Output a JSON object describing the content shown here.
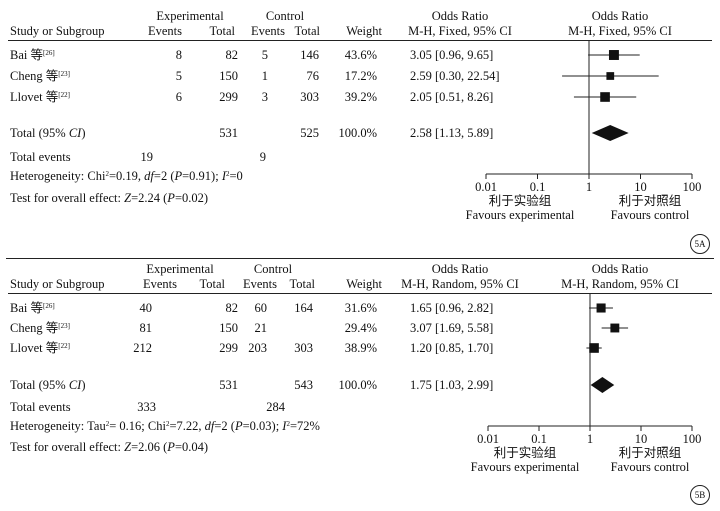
{
  "chart_data": [
    {
      "type": "forest",
      "header": {
        "study": "Study or Subgroup",
        "exp_group": "Experimental",
        "ctl_group": "Control",
        "events": "Events",
        "total": "Total",
        "weight": "Weight",
        "or_title": "Odds Ratio",
        "or_method": "M-H, Fixed, 95% CI",
        "plot_title": "Odds Ratio",
        "plot_method": "M-H, Fixed, 95% CI"
      },
      "studies": [
        {
          "name": "Bai 等",
          "ref": "[26]",
          "exp_events": "8",
          "exp_total": "82",
          "ctl_events": "5",
          "ctl_total": "146",
          "weight": "43.6%",
          "ci_text": "3.05 [0.96, 9.65]",
          "or": 3.05,
          "lo": 0.96,
          "hi": 9.65,
          "w": 43.6
        },
        {
          "name": "Cheng 等",
          "ref": "[23]",
          "exp_events": "5",
          "exp_total": "150",
          "ctl_events": "1",
          "ctl_total": "76",
          "weight": "17.2%",
          "ci_text": "2.59 [0.30, 22.54]",
          "or": 2.59,
          "lo": 0.3,
          "hi": 22.54,
          "w": 17.2
        },
        {
          "name": "Llovet 等",
          "ref": "[22]",
          "exp_events": "6",
          "exp_total": "299",
          "ctl_events": "3",
          "ctl_total": "303",
          "weight": "39.2%",
          "ci_text": "2.05 [0.51, 8.26]",
          "or": 2.05,
          "lo": 0.51,
          "hi": 8.26,
          "w": 39.2
        }
      ],
      "total": {
        "label": "Total (95% CI)",
        "exp_total": "531",
        "ctl_total": "525",
        "weight": "100.0%",
        "ci_text": "2.58 [1.13, 5.89]",
        "or": 2.58,
        "lo": 1.13,
        "hi": 5.89
      },
      "total_events": {
        "label": "Total events",
        "exp": "19",
        "ctl": "9"
      },
      "heterogeneity": "Heterogeneity: Chi²=0.19, df=2 (P=0.91); I²=0",
      "overall": "Test for overall effect: Z=2.24 (P=0.02)",
      "xticks": [
        "0.01",
        "0.1",
        "1",
        "10",
        "100"
      ],
      "xscale": "log",
      "xlim": [
        0.01,
        100
      ],
      "favours_left_cn": "利于实验组",
      "favours_right_cn": "利于对照组",
      "favours_left": "Favours experimental",
      "favours_right": "Favours control",
      "badge": "5A"
    },
    {
      "type": "forest",
      "header": {
        "study": "Study or Subgroup",
        "exp_group": "Experimental",
        "ctl_group": "Control",
        "events": "Events",
        "total": "Total",
        "weight": "Weight",
        "or_title": "Odds Ratio",
        "or_method": "M-H, Random, 95% CI",
        "plot_title": "Odds Ratio",
        "plot_method": "M-H, Random, 95% CI"
      },
      "studies": [
        {
          "name": "Bai 等",
          "ref": "[26]",
          "exp_events": "40",
          "exp_total": "82",
          "ctl_events": "60",
          "ctl_total": "164",
          "weight": "31.6%",
          "ci_text": "1.65 [0.96, 2.82]",
          "or": 1.65,
          "lo": 0.96,
          "hi": 2.82,
          "w": 31.6
        },
        {
          "name": "Cheng 等",
          "ref": "[23]",
          "exp_events": "81",
          "exp_total": "150",
          "ctl_events": "21",
          "ctl_total": "",
          "weight": "29.4%",
          "ci_text": "3.07 [1.69, 5.58]",
          "or": 3.07,
          "lo": 1.69,
          "hi": 5.58,
          "w": 29.4
        },
        {
          "name": "Llovet 等",
          "ref": "[22]",
          "exp_events": "212",
          "exp_total": "299",
          "ctl_events": "203",
          "ctl_total": "303",
          "weight": "38.9%",
          "ci_text": "1.20 [0.85, 1.70]",
          "or": 1.2,
          "lo": 0.85,
          "hi": 1.7,
          "w": 38.9
        }
      ],
      "total": {
        "label": "Total (95% CI)",
        "exp_total": "531",
        "ctl_total": "543",
        "weight": "100.0%",
        "ci_text": "1.75 [1.03, 2.99]",
        "or": 1.75,
        "lo": 1.03,
        "hi": 2.99
      },
      "total_events": {
        "label": "Total events",
        "exp": "333",
        "ctl": "284"
      },
      "heterogeneity": "Heterogeneity: Tau²= 0.16; Chi²=7.22, df=2 (P=0.03); I²=72%",
      "overall": "Test for overall effect: Z=2.06 (P=0.04)",
      "xticks": [
        "0.01",
        "0.1",
        "1",
        "10",
        "100"
      ],
      "xscale": "log",
      "xlim": [
        0.01,
        100
      ],
      "favours_left_cn": "利于实验组",
      "favours_right_cn": "利于对照组",
      "favours_left": "Favours experimental",
      "favours_right": "Favours control",
      "badge": "5B"
    }
  ]
}
